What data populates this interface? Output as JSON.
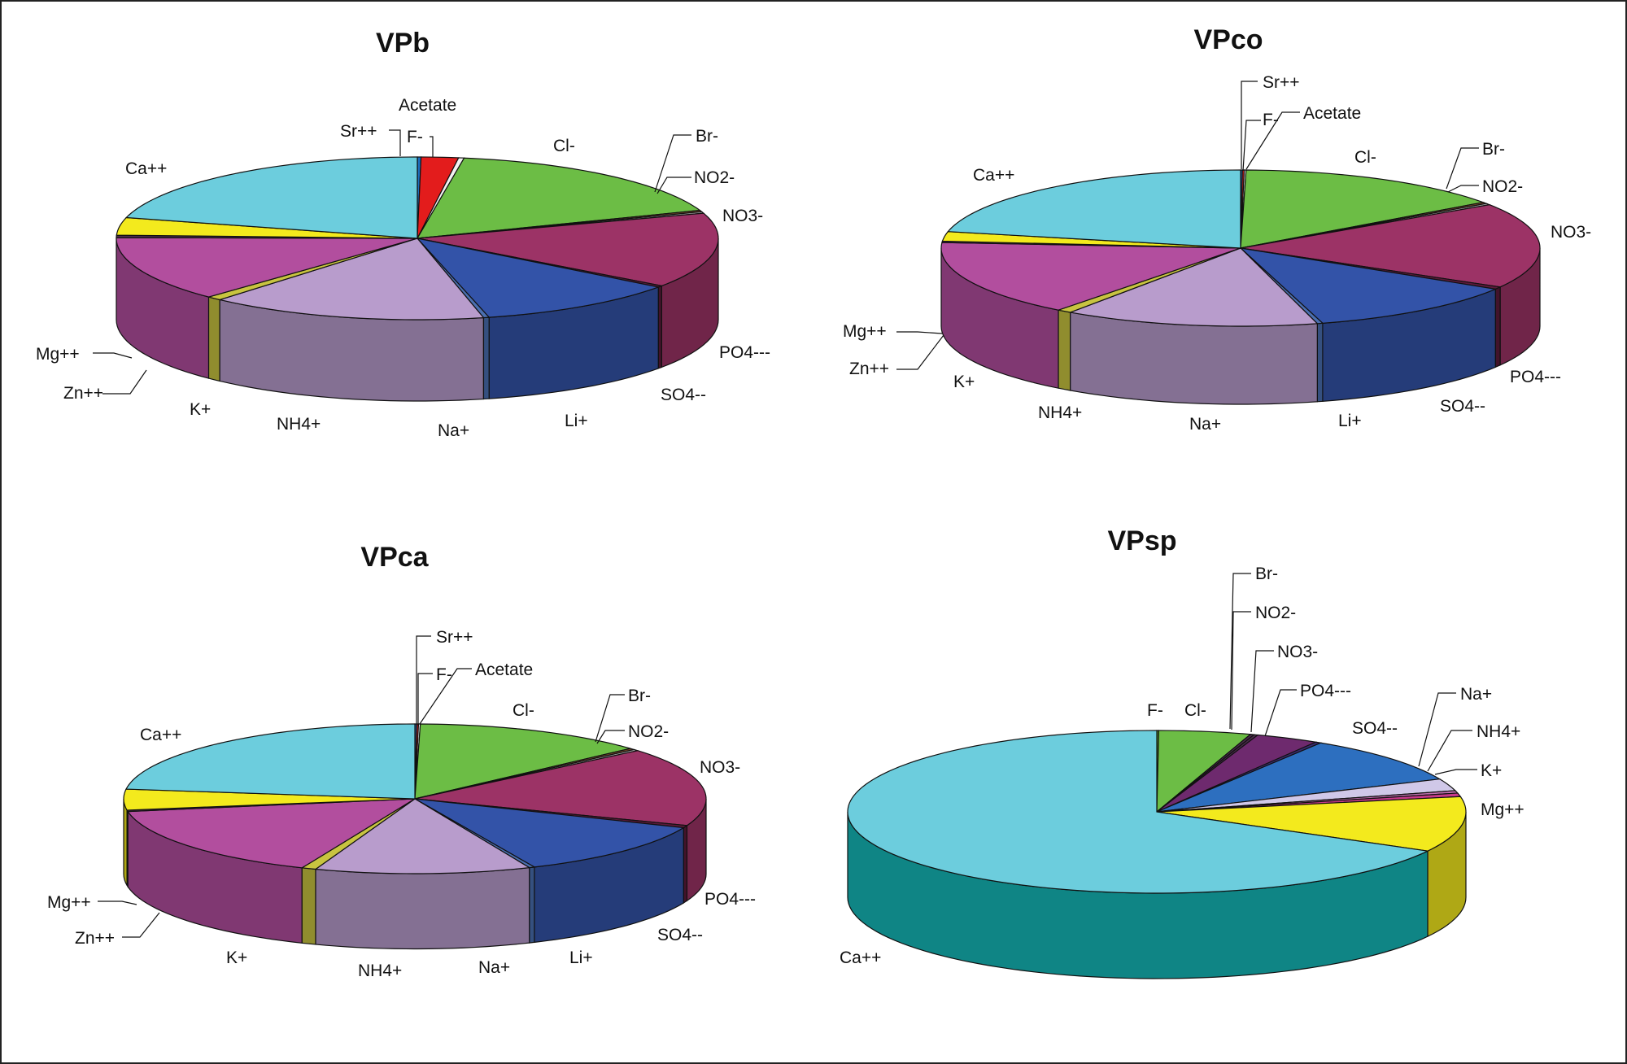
{
  "chart_data": [
    {
      "type": "pie",
      "title": "VPb",
      "slices": [
        {
          "label": "Sr++",
          "value": 0.2
        },
        {
          "label": "F-",
          "value": 2
        },
        {
          "label": "Acetate",
          "value": 0.3
        },
        {
          "label": "Cl-",
          "value": 17
        },
        {
          "label": "Br-",
          "value": 0.3
        },
        {
          "label": "NO2-",
          "value": 0.3
        },
        {
          "label": "NO3-",
          "value": 15
        },
        {
          "label": "PO4---",
          "value": 0.3
        },
        {
          "label": "SO4--",
          "value": 11
        },
        {
          "label": "Li+",
          "value": 0.3
        },
        {
          "label": "Na+",
          "value": 15
        },
        {
          "label": "NH4+",
          "value": 0.8
        },
        {
          "label": "K+",
          "value": 13
        },
        {
          "label": "Zn++",
          "value": 0.5
        },
        {
          "label": "Mg++",
          "value": 3.5
        },
        {
          "label": "Ca++",
          "value": 21
        }
      ]
    },
    {
      "type": "pie",
      "title": "VPco",
      "slices": [
        {
          "label": "Sr++",
          "value": 0.1
        },
        {
          "label": "F-",
          "value": 0.1
        },
        {
          "label": "Acetate",
          "value": 0.1
        },
        {
          "label": "Cl-",
          "value": 15
        },
        {
          "label": "Br-",
          "value": 0.3
        },
        {
          "label": "NO2-",
          "value": 0.3
        },
        {
          "label": "NO3-",
          "value": 18
        },
        {
          "label": "PO4---",
          "value": 0.5
        },
        {
          "label": "SO4--",
          "value": 12
        },
        {
          "label": "Li+",
          "value": 0.3
        },
        {
          "label": "Na+",
          "value": 14
        },
        {
          "label": "NH4+",
          "value": 0.8
        },
        {
          "label": "K+",
          "value": 16
        },
        {
          "label": "Zn++",
          "value": 0.3
        },
        {
          "label": "Mg++",
          "value": 2
        },
        {
          "label": "Ca++",
          "value": 22
        }
      ]
    },
    {
      "type": "pie",
      "title": "VPca",
      "slices": [
        {
          "label": "Sr++",
          "value": 0.1
        },
        {
          "label": "F-",
          "value": 0.1
        },
        {
          "label": "Acetate",
          "value": 0.1
        },
        {
          "label": "Cl-",
          "value": 13
        },
        {
          "label": "Br-",
          "value": 0.3
        },
        {
          "label": "NO2-",
          "value": 0.3
        },
        {
          "label": "NO3-",
          "value": 17
        },
        {
          "label": "PO4---",
          "value": 0.5
        },
        {
          "label": "SO4--",
          "value": 12
        },
        {
          "label": "Li+",
          "value": 0.3
        },
        {
          "label": "Na+",
          "value": 12
        },
        {
          "label": "NH4+",
          "value": 0.8
        },
        {
          "label": "K+",
          "value": 16
        },
        {
          "label": "Zn++",
          "value": 0.3
        },
        {
          "label": "Mg++",
          "value": 4.5
        },
        {
          "label": "Ca++",
          "value": 23
        }
      ]
    },
    {
      "type": "pie",
      "title": "VPsp",
      "slices": [
        {
          "label": "F-",
          "value": 0.1
        },
        {
          "label": "Cl-",
          "value": 4.8
        },
        {
          "label": "Br-",
          "value": 0.2
        },
        {
          "label": "NO2-",
          "value": 0.2
        },
        {
          "label": "NO3-",
          "value": 3.3
        },
        {
          "label": "PO4---",
          "value": 0.3
        },
        {
          "label": "SO4--",
          "value": 9.5
        },
        {
          "label": "Na+",
          "value": 2.4
        },
        {
          "label": "NH4+",
          "value": 0.5
        },
        {
          "label": "K+",
          "value": 0.7
        },
        {
          "label": "Mg++",
          "value": 11
        },
        {
          "label": "Ca++",
          "value": 67
        }
      ]
    }
  ],
  "palette": {
    "Sr++": "#1d6fbf",
    "F-": "#e31c1c",
    "Acetate": "#f2f2f2",
    "Cl-": "#6cbd45",
    "Br-": "#7a4a2a",
    "NO2-": "#b0b0b0",
    "NO3-": "#9c3366",
    "PO4---": "#5c1a3a",
    "SO4--": "#3353a8",
    "Li+": "#4a6fb0",
    "Na+": "#b89ccc",
    "NH4+": "#c8c440",
    "K+": "#b24e9e",
    "Zn++": "#4a2a4a",
    "Mg++": "#f3ea1d",
    "Ca++": "#6ccddd"
  },
  "palette_vpsp": {
    "F-": "#5aa02a",
    "Cl-": "#6cbd45",
    "Br-": "#4a2a4a",
    "NO2-": "#4a2a4a",
    "NO3-": "#6e2a6e",
    "PO4---": "#3a2a6e",
    "SO4--": "#2d6fbf",
    "Na+": "#d0c8e8",
    "NH4+": "#c070b0",
    "K+": "#c83a8a",
    "Mg++": "#f3ea1d",
    "Ca++": "#6ccddd"
  },
  "side_colors": {
    "VPsp_ca_side": "#0f8585"
  }
}
